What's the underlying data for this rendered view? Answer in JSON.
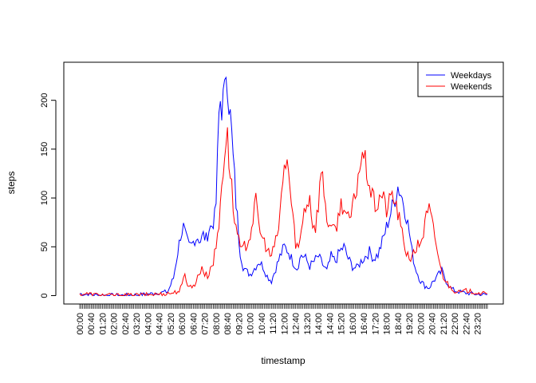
{
  "chart_data": {
    "type": "line",
    "title": "",
    "xlabel": "timestamp",
    "ylabel": "steps",
    "ylim": [
      -8,
      236
    ],
    "yticks": [
      0,
      50,
      100,
      150,
      200
    ],
    "x_unit": "5-minute interval of day",
    "x_range": [
      "00:00",
      "23:55"
    ],
    "x_tick_labels": [
      "00:00",
      "00:40",
      "01:20",
      "02:00",
      "02:40",
      "03:20",
      "04:00",
      "04:40",
      "05:20",
      "06:00",
      "06:40",
      "07:20",
      "08:00",
      "08:40",
      "09:20",
      "10:00",
      "10:40",
      "11:20",
      "12:00",
      "12:40",
      "13:20",
      "14:00",
      "14:40",
      "15:20",
      "16:00",
      "16:40",
      "17:20",
      "18:00",
      "18:40",
      "19:20",
      "20:00",
      "20:40",
      "21:20",
      "22:00",
      "22:40",
      "23:20"
    ],
    "grid": false,
    "legend_position": "top-right",
    "series": [
      {
        "name": "Weekdays",
        "color": "#0000ff",
        "points": [
          [
            "00:00",
            2
          ],
          [
            "01:00",
            0.5
          ],
          [
            "02:00",
            0.3
          ],
          [
            "03:00",
            0.5
          ],
          [
            "04:00",
            1.5
          ],
          [
            "04:40",
            3
          ],
          [
            "05:10",
            4
          ],
          [
            "05:30",
            18
          ],
          [
            "05:45",
            45
          ],
          [
            "05:55",
            62
          ],
          [
            "06:05",
            70
          ],
          [
            "06:15",
            58
          ],
          [
            "06:25",
            50
          ],
          [
            "06:35",
            52
          ],
          [
            "06:45",
            58
          ],
          [
            "06:55",
            60
          ],
          [
            "07:05",
            56
          ],
          [
            "07:15",
            62
          ],
          [
            "07:25",
            58
          ],
          [
            "07:35",
            68
          ],
          [
            "07:45",
            72
          ],
          [
            "07:55",
            80
          ],
          [
            "08:00",
            95
          ],
          [
            "08:05",
            140
          ],
          [
            "08:10",
            185
          ],
          [
            "08:15",
            200
          ],
          [
            "08:20",
            190
          ],
          [
            "08:25",
            203
          ],
          [
            "08:30",
            210
          ],
          [
            "08:35",
            230
          ],
          [
            "08:40",
            215
          ],
          [
            "08:45",
            195
          ],
          [
            "08:50",
            185
          ],
          [
            "08:55",
            165
          ],
          [
            "09:00",
            140
          ],
          [
            "09:05",
            120
          ],
          [
            "09:10",
            95
          ],
          [
            "09:15",
            80
          ],
          [
            "09:20",
            60
          ],
          [
            "09:25",
            45
          ],
          [
            "09:35",
            30
          ],
          [
            "09:45",
            25
          ],
          [
            "10:00",
            22
          ],
          [
            "10:15",
            28
          ],
          [
            "10:30",
            35
          ],
          [
            "10:45",
            30
          ],
          [
            "11:00",
            20
          ],
          [
            "11:15",
            15
          ],
          [
            "11:30",
            28
          ],
          [
            "11:45",
            40
          ],
          [
            "12:00",
            50
          ],
          [
            "12:15",
            45
          ],
          [
            "12:30",
            35
          ],
          [
            "12:45",
            28
          ],
          [
            "13:00",
            42
          ],
          [
            "13:15",
            38
          ],
          [
            "13:30",
            30
          ],
          [
            "13:45",
            35
          ],
          [
            "14:00",
            40
          ],
          [
            "14:15",
            32
          ],
          [
            "14:30",
            25
          ],
          [
            "14:45",
            40
          ],
          [
            "15:00",
            35
          ],
          [
            "15:15",
            45
          ],
          [
            "15:30",
            50
          ],
          [
            "15:45",
            38
          ],
          [
            "16:00",
            30
          ],
          [
            "16:15",
            28
          ],
          [
            "16:30",
            35
          ],
          [
            "16:45",
            40
          ],
          [
            "17:00",
            45
          ],
          [
            "17:15",
            38
          ],
          [
            "17:30",
            42
          ],
          [
            "17:45",
            55
          ],
          [
            "18:00",
            70
          ],
          [
            "18:15",
            85
          ],
          [
            "18:30",
            100
          ],
          [
            "18:40",
            112
          ],
          [
            "18:50",
            105
          ],
          [
            "19:00",
            95
          ],
          [
            "19:10",
            82
          ],
          [
            "19:20",
            65
          ],
          [
            "19:30",
            45
          ],
          [
            "19:40",
            30
          ],
          [
            "19:50",
            22
          ],
          [
            "20:00",
            15
          ],
          [
            "20:15",
            10
          ],
          [
            "20:30",
            8
          ],
          [
            "20:45",
            15
          ],
          [
            "21:00",
            20
          ],
          [
            "21:15",
            25
          ],
          [
            "21:30",
            15
          ],
          [
            "21:45",
            8
          ],
          [
            "22:00",
            5
          ],
          [
            "22:30",
            3
          ],
          [
            "23:00",
            2
          ],
          [
            "23:30",
            1
          ],
          [
            "23:55",
            1
          ]
        ]
      },
      {
        "name": "Weekends",
        "color": "#ff0000",
        "points": [
          [
            "00:00",
            1
          ],
          [
            "00:20",
            2
          ],
          [
            "01:00",
            1
          ],
          [
            "02:00",
            0.3
          ],
          [
            "03:00",
            0.5
          ],
          [
            "04:00",
            1
          ],
          [
            "05:00",
            2
          ],
          [
            "05:30",
            3
          ],
          [
            "05:50",
            5
          ],
          [
            "06:00",
            10
          ],
          [
            "06:10",
            22
          ],
          [
            "06:20",
            12
          ],
          [
            "06:35",
            8
          ],
          [
            "06:50",
            15
          ],
          [
            "07:00",
            22
          ],
          [
            "07:10",
            30
          ],
          [
            "07:20",
            22
          ],
          [
            "07:30",
            20
          ],
          [
            "07:40",
            28
          ],
          [
            "07:50",
            35
          ],
          [
            "08:00",
            50
          ],
          [
            "08:10",
            72
          ],
          [
            "08:20",
            118
          ],
          [
            "08:30",
            145
          ],
          [
            "08:35",
            160
          ],
          [
            "08:40",
            162
          ],
          [
            "08:45",
            140
          ],
          [
            "08:50",
            130
          ],
          [
            "08:55",
            110
          ],
          [
            "09:00",
            88
          ],
          [
            "09:10",
            70
          ],
          [
            "09:20",
            55
          ],
          [
            "09:30",
            45
          ],
          [
            "09:40",
            50
          ],
          [
            "09:50",
            55
          ],
          [
            "10:00",
            62
          ],
          [
            "10:10",
            80
          ],
          [
            "10:20",
            95
          ],
          [
            "10:30",
            75
          ],
          [
            "10:40",
            60
          ],
          [
            "10:50",
            55
          ],
          [
            "11:00",
            48
          ],
          [
            "11:10",
            40
          ],
          [
            "11:20",
            45
          ],
          [
            "11:30",
            55
          ],
          [
            "11:40",
            70
          ],
          [
            "11:50",
            100
          ],
          [
            "12:00",
            130
          ],
          [
            "12:10",
            142
          ],
          [
            "12:20",
            110
          ],
          [
            "12:30",
            80
          ],
          [
            "12:40",
            55
          ],
          [
            "12:50",
            48
          ],
          [
            "13:00",
            65
          ],
          [
            "13:10",
            90
          ],
          [
            "13:20",
            95
          ],
          [
            "13:30",
            100
          ],
          [
            "13:40",
            75
          ],
          [
            "13:50",
            70
          ],
          [
            "14:00",
            95
          ],
          [
            "14:10",
            128
          ],
          [
            "14:20",
            108
          ],
          [
            "14:30",
            80
          ],
          [
            "14:40",
            72
          ],
          [
            "14:50",
            65
          ],
          [
            "15:00",
            70
          ],
          [
            "15:10",
            78
          ],
          [
            "15:20",
            95
          ],
          [
            "15:30",
            92
          ],
          [
            "15:40",
            80
          ],
          [
            "15:50",
            75
          ],
          [
            "16:00",
            90
          ],
          [
            "16:10",
            100
          ],
          [
            "16:20",
            125
          ],
          [
            "16:30",
            138
          ],
          [
            "16:40",
            142
          ],
          [
            "16:50",
            128
          ],
          [
            "17:00",
            115
          ],
          [
            "17:10",
            100
          ],
          [
            "17:20",
            92
          ],
          [
            "17:30",
            95
          ],
          [
            "17:40",
            105
          ],
          [
            "17:50",
            98
          ],
          [
            "18:00",
            88
          ],
          [
            "18:10",
            95
          ],
          [
            "18:20",
            105
          ],
          [
            "18:30",
            95
          ],
          [
            "18:40",
            85
          ],
          [
            "18:50",
            70
          ],
          [
            "19:00",
            55
          ],
          [
            "19:10",
            45
          ],
          [
            "19:20",
            40
          ],
          [
            "19:30",
            38
          ],
          [
            "19:40",
            45
          ],
          [
            "19:50",
            52
          ],
          [
            "20:00",
            55
          ],
          [
            "20:10",
            65
          ],
          [
            "20:20",
            80
          ],
          [
            "20:30",
            88
          ],
          [
            "20:40",
            75
          ],
          [
            "20:50",
            60
          ],
          [
            "21:00",
            45
          ],
          [
            "21:10",
            28
          ],
          [
            "21:20",
            20
          ],
          [
            "21:30",
            15
          ],
          [
            "21:40",
            10
          ],
          [
            "21:50",
            8
          ],
          [
            "22:00",
            5
          ],
          [
            "22:20",
            3
          ],
          [
            "22:40",
            5
          ],
          [
            "23:00",
            4
          ],
          [
            "23:20",
            3
          ],
          [
            "23:40",
            2
          ],
          [
            "23:55",
            1
          ]
        ]
      }
    ]
  }
}
